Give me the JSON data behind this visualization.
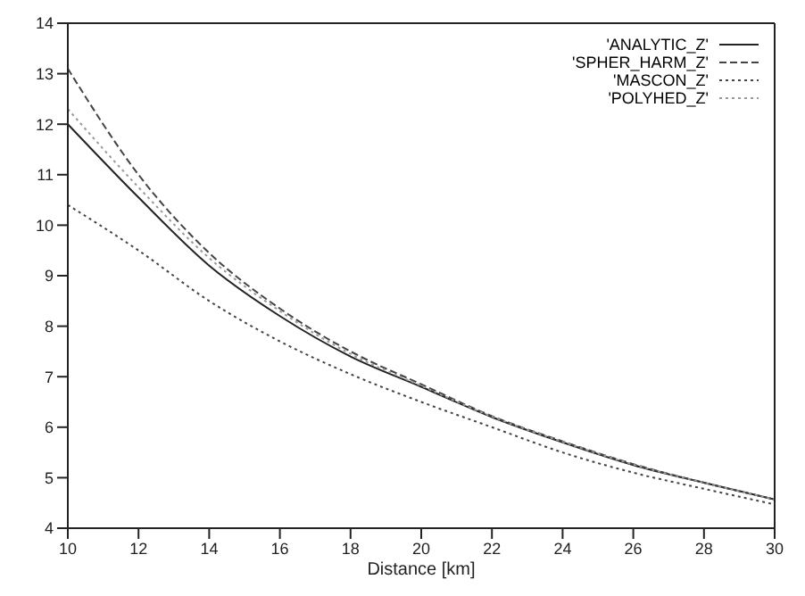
{
  "chart_data": {
    "type": "line",
    "xlabel": "Distance [km]",
    "x": [
      10,
      12,
      14,
      16,
      18,
      20,
      22,
      24,
      26,
      28,
      30
    ],
    "xlim": [
      10,
      30
    ],
    "xticks": [
      10,
      12,
      14,
      16,
      18,
      20,
      22,
      24,
      26,
      28,
      30
    ],
    "ylim": [
      4,
      14
    ],
    "yticks": [
      4,
      5,
      6,
      7,
      8,
      9,
      10,
      11,
      12,
      13,
      14
    ],
    "grid": false,
    "legend": "top right",
    "marker": "none",
    "series": [
      {
        "name": "'ANALYTIC_Z'",
        "color": "#222222",
        "line_style": "solid",
        "values": [
          12.0,
          10.55,
          9.2,
          8.2,
          7.4,
          6.8,
          6.2,
          5.7,
          5.25,
          4.9,
          4.57
        ]
      },
      {
        "name": "'SPHER_HARM_Z'",
        "color": "#444444",
        "line_style": "dashed",
        "values": [
          13.1,
          11.0,
          9.45,
          8.35,
          7.5,
          6.85,
          6.22,
          5.72,
          5.27,
          4.9,
          4.57
        ]
      },
      {
        "name": "'MASCON_Z'",
        "color": "#444444",
        "line_style": "dotted",
        "values": [
          10.4,
          9.5,
          8.5,
          7.7,
          7.05,
          6.5,
          6.0,
          5.5,
          5.1,
          4.78,
          4.47
        ]
      },
      {
        "name": "'POLYHED_Z'",
        "color": "#999999",
        "line_style": "dotted",
        "values": [
          12.3,
          10.75,
          9.35,
          8.3,
          7.45,
          6.82,
          6.21,
          5.71,
          5.26,
          4.9,
          4.57
        ]
      }
    ]
  }
}
